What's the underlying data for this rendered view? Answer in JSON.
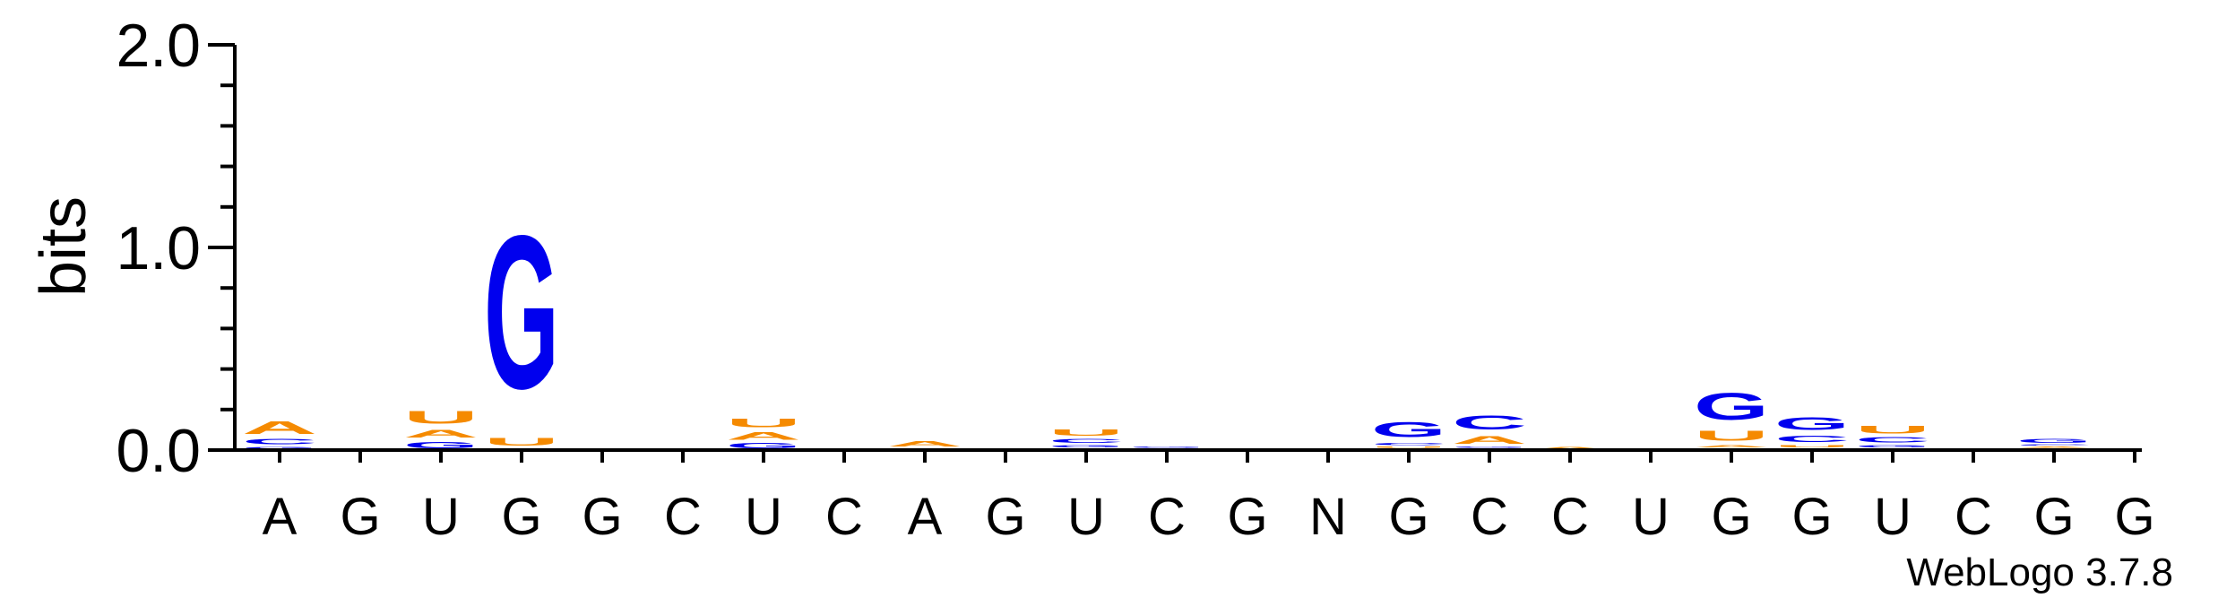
{
  "chart_data": {
    "type": "sequence-logo",
    "ylabel": "bits",
    "ylim": [
      0,
      2.0
    ],
    "yticks": [
      "0.0",
      "1.0",
      "2.0"
    ],
    "watermark": "WebLogo 3.7.8",
    "colors": {
      "A": "#f58a00",
      "U": "#f58a00",
      "G": "#0000ee",
      "C": "#0000ee",
      "N": "#0000ee"
    },
    "positions": [
      {
        "label": "A",
        "stack": [
          {
            "base": "G",
            "bits": 0.02
          },
          {
            "base": "C",
            "bits": 0.04
          },
          {
            "base": "A",
            "bits": 0.1
          }
        ]
      },
      {
        "label": "G",
        "stack": []
      },
      {
        "label": "U",
        "stack": [
          {
            "base": "G",
            "bits": 0.05
          },
          {
            "base": "A",
            "bits": 0.06
          },
          {
            "base": "U",
            "bits": 0.1
          }
        ]
      },
      {
        "label": "G",
        "stack": [
          {
            "base": "A",
            "bits": 0.01
          },
          {
            "base": "U",
            "bits": 0.06
          },
          {
            "base": "G",
            "bits": 1.21
          }
        ]
      },
      {
        "label": "G",
        "stack": []
      },
      {
        "label": "C",
        "stack": [
          {
            "base": "G",
            "bits": 0.01
          }
        ]
      },
      {
        "label": "U",
        "stack": [
          {
            "base": "G",
            "bits": 0.04
          },
          {
            "base": "A",
            "bits": 0.06
          },
          {
            "base": "U",
            "bits": 0.07
          }
        ]
      },
      {
        "label": "C",
        "stack": []
      },
      {
        "label": "A",
        "stack": [
          {
            "base": "G",
            "bits": 0.01
          },
          {
            "base": "A",
            "bits": 0.04
          }
        ]
      },
      {
        "label": "G",
        "stack": []
      },
      {
        "label": "U",
        "stack": [
          {
            "base": "A",
            "bits": 0.01
          },
          {
            "base": "G",
            "bits": 0.02
          },
          {
            "base": "C",
            "bits": 0.03
          },
          {
            "base": "U",
            "bits": 0.05
          }
        ]
      },
      {
        "label": "C",
        "stack": [
          {
            "base": "A",
            "bits": 0.01
          },
          {
            "base": "G",
            "bits": 0.01
          }
        ]
      },
      {
        "label": "G",
        "stack": []
      },
      {
        "label": "N",
        "stack": []
      },
      {
        "label": "G",
        "stack": [
          {
            "base": "A",
            "bits": 0.01
          },
          {
            "base": "U",
            "bits": 0.01
          },
          {
            "base": "C",
            "bits": 0.02
          },
          {
            "base": "G",
            "bits": 0.12
          }
        ]
      },
      {
        "label": "C",
        "stack": [
          {
            "base": "U",
            "bits": 0.01
          },
          {
            "base": "G",
            "bits": 0.01
          },
          {
            "base": "A",
            "bits": 0.06
          },
          {
            "base": "C",
            "bits": 0.11
          }
        ]
      },
      {
        "label": "C",
        "stack": [
          {
            "base": "A",
            "bits": 0.02
          }
        ]
      },
      {
        "label": "U",
        "stack": []
      },
      {
        "label": "G",
        "stack": [
          {
            "base": "C",
            "bits": 0.01
          },
          {
            "base": "A",
            "bits": 0.02
          },
          {
            "base": "U",
            "bits": 0.08
          },
          {
            "base": "G",
            "bits": 0.21
          }
        ]
      },
      {
        "label": "G",
        "stack": [
          {
            "base": "A",
            "bits": 0.01
          },
          {
            "base": "U",
            "bits": 0.02
          },
          {
            "base": "C",
            "bits": 0.05
          },
          {
            "base": "G",
            "bits": 0.1
          }
        ]
      },
      {
        "label": "U",
        "stack": [
          {
            "base": "A",
            "bits": 0.01
          },
          {
            "base": "G",
            "bits": 0.02
          },
          {
            "base": "C",
            "bits": 0.04
          },
          {
            "base": "U",
            "bits": 0.06
          }
        ]
      },
      {
        "label": "C",
        "stack": [
          {
            "base": "A",
            "bits": 0.01
          }
        ]
      },
      {
        "label": "G",
        "stack": [
          {
            "base": "U",
            "bits": 0.01
          },
          {
            "base": "A",
            "bits": 0.01
          },
          {
            "base": "C",
            "bits": 0.01
          },
          {
            "base": "G",
            "bits": 0.03
          }
        ]
      },
      {
        "label": "G",
        "stack": []
      }
    ]
  }
}
